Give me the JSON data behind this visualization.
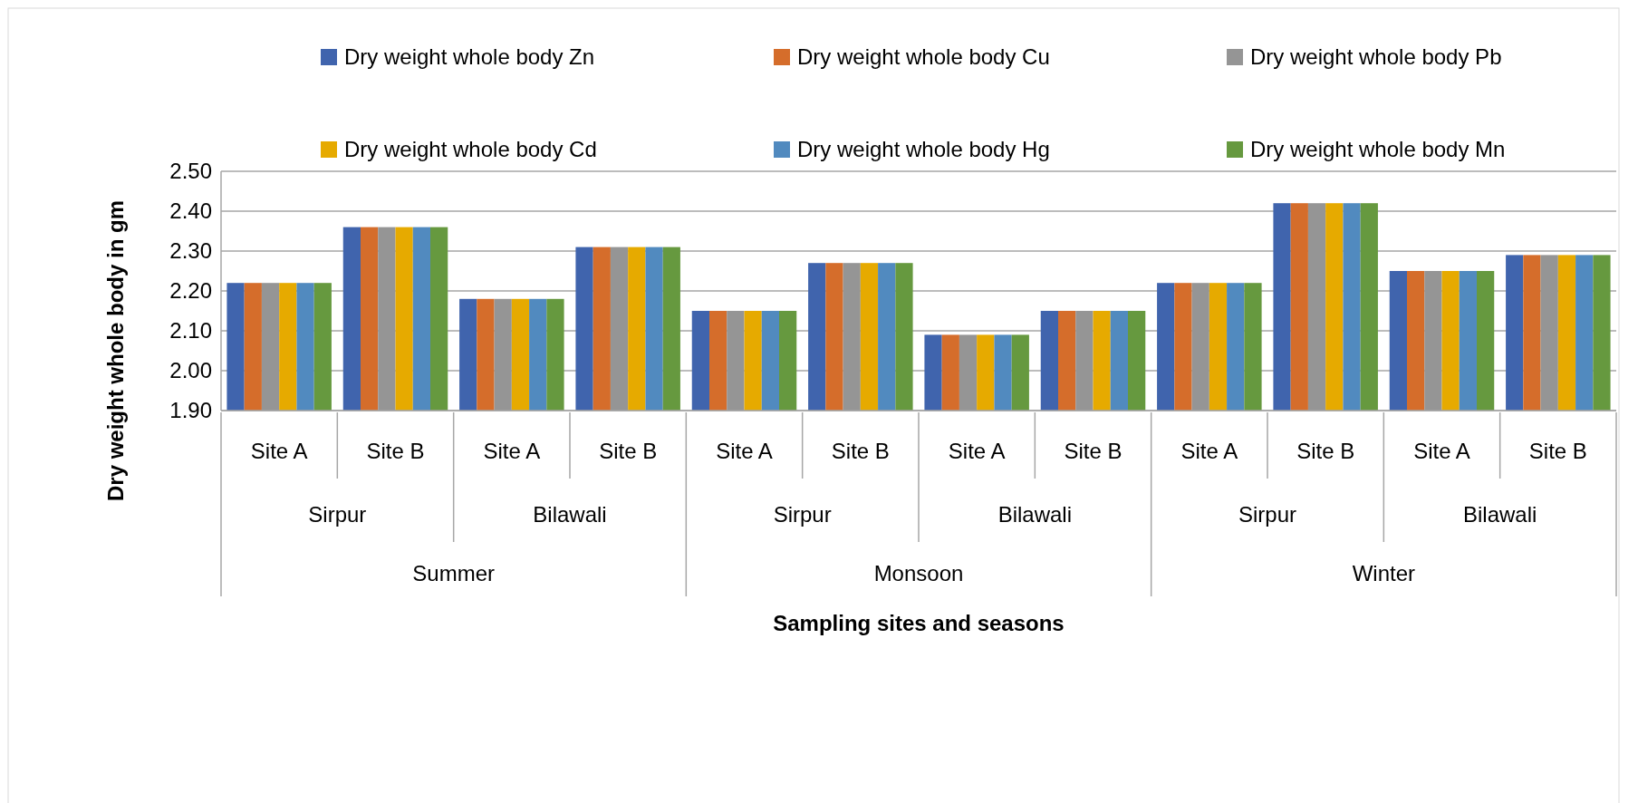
{
  "chart_data": {
    "type": "bar",
    "ylabel": "Dry weight whole body in gm",
    "categories": [
      "Site A",
      "Site B",
      "Site A",
      "Site B",
      "Site A",
      "Site B",
      "Site A",
      "Site B",
      "Site A",
      "Site B",
      "Site A",
      "Site B"
    ],
    "series": [
      {
        "name": "Dry weight whole body Zn",
        "color": "#4064ad",
        "values": [
          2.22,
          2.36,
          2.18,
          2.31,
          2.15,
          2.27,
          2.09,
          2.15,
          2.22,
          2.42,
          2.25,
          2.29
        ]
      },
      {
        "name": "Dry weight whole body Cu",
        "color": "#d56d2b",
        "values": [
          2.22,
          2.36,
          2.18,
          2.31,
          2.15,
          2.27,
          2.09,
          2.15,
          2.22,
          2.42,
          2.25,
          2.29
        ]
      },
      {
        "name": "Dry weight whole body Pb",
        "color": "#959595",
        "values": [
          2.22,
          2.36,
          2.18,
          2.31,
          2.15,
          2.27,
          2.09,
          2.15,
          2.22,
          2.42,
          2.25,
          2.29
        ]
      },
      {
        "name": "Dry weight whole body Cd",
        "color": "#e6aa00",
        "values": [
          2.22,
          2.36,
          2.18,
          2.31,
          2.15,
          2.27,
          2.09,
          2.15,
          2.22,
          2.42,
          2.25,
          2.29
        ]
      },
      {
        "name": "Dry weight whole body Hg",
        "color": "#518abf",
        "values": [
          2.22,
          2.36,
          2.18,
          2.31,
          2.15,
          2.27,
          2.09,
          2.15,
          2.22,
          2.42,
          2.25,
          2.29
        ]
      },
      {
        "name": "Dry weight whole body Mn",
        "color": "#66993f",
        "values": [
          2.22,
          2.36,
          2.18,
          2.31,
          2.15,
          2.27,
          2.09,
          2.15,
          2.22,
          2.42,
          2.25,
          2.29
        ]
      }
    ],
    "annotations": [
      "Sirpur",
      "Bilawali",
      "Sirpur",
      "Bilawali",
      "Sirpur",
      "Bilawali",
      "Summer",
      "Monsoon",
      "Winter",
      "Sampling sites and seasons"
    ],
    "ylim": [
      1.9,
      2.5
    ],
    "yticks": [
      {
        "value": 1.9,
        "label": "1.90"
      },
      {
        "value": 2.0,
        "label": "2.00"
      },
      {
        "value": 2.1,
        "label": "2.10"
      },
      {
        "value": 2.2,
        "label": "2.20"
      },
      {
        "value": 2.3,
        "label": "2.30"
      },
      {
        "value": 2.4,
        "label": "2.40"
      },
      {
        "value": 2.5,
        "label": "2.50"
      }
    ],
    "grid": "y",
    "legend": "top"
  }
}
